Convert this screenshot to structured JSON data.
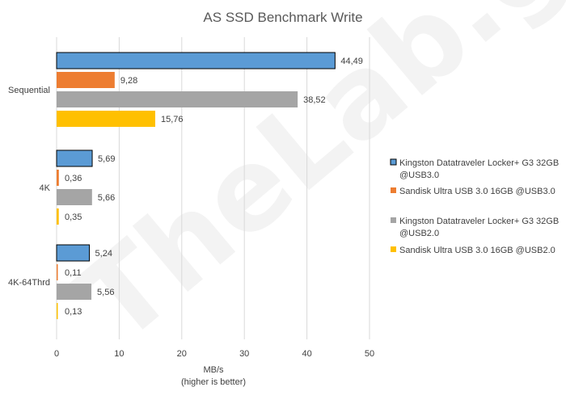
{
  "chart_data": {
    "type": "bar",
    "orientation": "horizontal",
    "title": "AS SSD Benchmark Write",
    "xlabel": "MB/s\n(higher is better)",
    "ylabel": "",
    "xlim": [
      0,
      50
    ],
    "xticks": [
      "0",
      "10",
      "20",
      "30",
      "40",
      "50"
    ],
    "grid": true,
    "legend_position": "right",
    "categories": [
      "Sequential",
      "4K",
      "4K-64Thrd"
    ],
    "series": [
      {
        "name": "Kingston Datatraveler Locker+ G3 32GB @USB3.0",
        "color": "#5b9bd5",
        "outline": "#000000",
        "values": [
          44.49,
          5.69,
          5.24
        ],
        "labels": [
          "44,49",
          "5,69",
          "5,24"
        ]
      },
      {
        "name": "Sandisk Ultra USB 3.0 16GB @USB3.0",
        "color": "#ed7d31",
        "values": [
          9.28,
          0.36,
          0.11
        ],
        "labels": [
          "9,28",
          "0,36",
          "0,11"
        ]
      },
      {
        "name": "Kingston Datatraveler Locker+ G3 32GB @USB2.0",
        "color": "#a5a5a5",
        "values": [
          38.52,
          5.66,
          5.56
        ],
        "labels": [
          "38,52",
          "5,66",
          "5,56"
        ]
      },
      {
        "name": "Sandisk Ultra USB 3.0 16GB @USB2.0",
        "color": "#ffc000",
        "values": [
          15.76,
          0.35,
          0.13
        ],
        "labels": [
          "15,76",
          "0,35",
          "0,13"
        ]
      }
    ],
    "watermark": "TheLab.gr"
  }
}
